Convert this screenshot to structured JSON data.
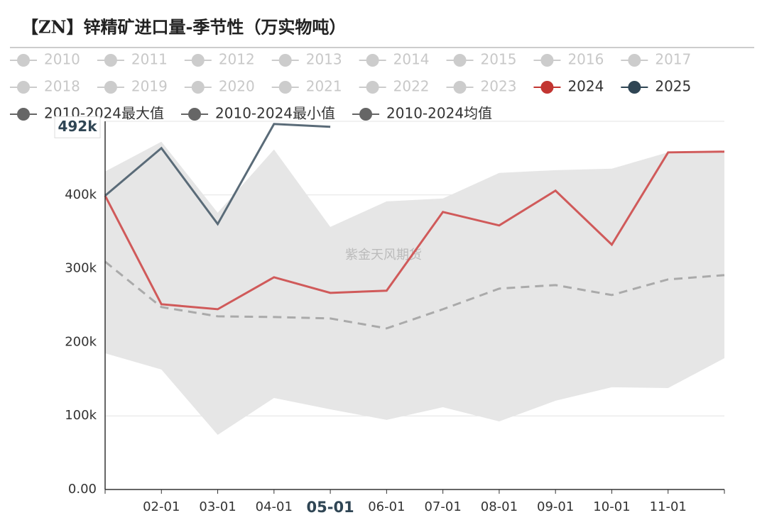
{
  "chart_data": {
    "type": "line",
    "title": "【ZN】锌精矿进口量-季节性（万实物吨）",
    "watermark": "紫金天风期货",
    "categories": [
      null,
      "02-01",
      "03-01",
      "04-01",
      "05-01",
      "06-01",
      "07-01",
      "08-01",
      "09-01",
      "10-01",
      "11-01",
      null
    ],
    "ylim": [
      0,
      500000
    ],
    "yticks": [
      {
        "value": 0,
        "label": "0.00"
      },
      {
        "value": 100000,
        "label": "100k"
      },
      {
        "value": 200000,
        "label": "200k"
      },
      {
        "value": 300000,
        "label": "300k"
      },
      {
        "value": 400000,
        "label": "400k"
      }
    ],
    "grid": true,
    "x_pointer": 4,
    "y_pointer": {
      "value": 492000,
      "label": "492k"
    },
    "band_color": "#e6e6e6",
    "series": [
      {
        "name": "2010",
        "color": "#cccccc",
        "hidden": true
      },
      {
        "name": "2011",
        "color": "#cccccc",
        "hidden": true
      },
      {
        "name": "2012",
        "color": "#cccccc",
        "hidden": true
      },
      {
        "name": "2013",
        "color": "#cccccc",
        "hidden": true
      },
      {
        "name": "2014",
        "color": "#cccccc",
        "hidden": true
      },
      {
        "name": "2015",
        "color": "#cccccc",
        "hidden": true
      },
      {
        "name": "2016",
        "color": "#cccccc",
        "hidden": true
      },
      {
        "name": "2017",
        "color": "#cccccc",
        "hidden": true
      },
      {
        "name": "2018",
        "color": "#cccccc",
        "hidden": true
      },
      {
        "name": "2019",
        "color": "#cccccc",
        "hidden": true
      },
      {
        "name": "2020",
        "color": "#cccccc",
        "hidden": true
      },
      {
        "name": "2021",
        "color": "#cccccc",
        "hidden": true
      },
      {
        "name": "2022",
        "color": "#cccccc",
        "hidden": true
      },
      {
        "name": "2023",
        "color": "#cccccc",
        "hidden": true
      },
      {
        "name": "2024",
        "color": "#c23531",
        "line_color": "#d05a5a",
        "values": [
          399000,
          251600,
          244800,
          288200,
          267000,
          270000,
          376900,
          358600,
          405800,
          332500,
          457800,
          458800
        ]
      },
      {
        "name": "2025",
        "color": "#2f4554",
        "line_color": "#5a6b78",
        "values": [
          399000,
          463600,
          360500,
          496400,
          492500,
          null,
          null,
          null,
          null,
          null,
          null,
          null
        ]
      },
      {
        "name": "2010-2024最大值",
        "color": "#666666",
        "role": "band_top",
        "values": [
          431800,
          472300,
          375900,
          461700,
          356600,
          391300,
          395200,
          429900,
          433700,
          435700,
          457800,
          459800
        ]
      },
      {
        "name": "2010-2024最小值",
        "color": "#666666",
        "role": "band_bottom",
        "values": [
          185000,
          162900,
          74200,
          124300,
          108900,
          94500,
          111800,
          92500,
          120500,
          138800,
          137800,
          178300
        ]
      },
      {
        "name": "2010-2024均值",
        "color": "#666666",
        "line_color": "#aaaaaa",
        "dashed": true,
        "values": [
          309400,
          247700,
          235200,
          234200,
          232300,
          218800,
          244800,
          272800,
          277600,
          264100,
          285300,
          291100
        ]
      }
    ]
  }
}
